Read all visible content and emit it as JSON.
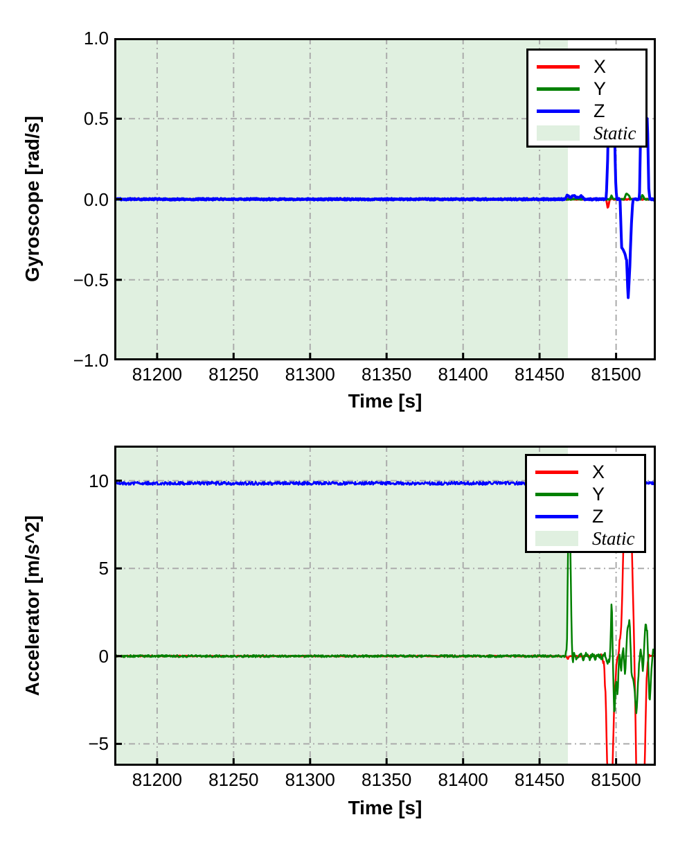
{
  "chart_data": [
    {
      "type": "line",
      "title": "",
      "xlabel": "Time [s]",
      "ylabel": "Gyroscope [rad/s]",
      "xlim": [
        81172,
        81526
      ],
      "ylim": [
        -1.0,
        1.0
      ],
      "xticks": [
        81200,
        81250,
        81300,
        81350,
        81400,
        81450,
        81500
      ],
      "xtick_labels": [
        "81200",
        "81250",
        "81300",
        "81350",
        "81400",
        "81450",
        "81500"
      ],
      "yticks": [
        1.0,
        0.5,
        0.0,
        -0.5,
        -1.0
      ],
      "ytick_labels": [
        "1.0",
        "0.5",
        "0.0",
        "−0.5",
        "−1.0"
      ],
      "grid": {
        "on": true,
        "style": "dash-dot",
        "color": "#ababab",
        "dash": "9 5 2 5"
      },
      "static_region": {
        "label": "Static",
        "x_start": 81172,
        "x_end": 81468.5,
        "color": "rgba(0,128,0,0.12)"
      },
      "legend": {
        "position": "upper right",
        "entries": [
          {
            "label": "X",
            "color": "#ff0000",
            "type": "line",
            "italic": false
          },
          {
            "label": "Y",
            "color": "#008000",
            "type": "line",
            "italic": false
          },
          {
            "label": "Z",
            "color": "#0000ff",
            "type": "line",
            "italic": false
          },
          {
            "label": "Static",
            "color": "rgba(0,128,0,0.12)",
            "type": "patch",
            "italic": true
          }
        ]
      },
      "series": [
        {
          "name": "X",
          "color": "#ff0000",
          "width": 3,
          "noise": 0.0035,
          "points": [
            [
              81172,
              0
            ],
            [
              81493.5,
              0
            ],
            [
              81494.6,
              -0.055
            ],
            [
              81496,
              0
            ],
            [
              81526,
              0
            ]
          ]
        },
        {
          "name": "Y",
          "color": "#008000",
          "width": 3,
          "noise": 0.0035,
          "points": [
            [
              81172,
              0
            ],
            [
              81496,
              0
            ],
            [
              81497,
              0.025
            ],
            [
              81498.3,
              0
            ],
            [
              81505.5,
              0
            ],
            [
              81506.5,
              0.035
            ],
            [
              81508.5,
              0.02
            ],
            [
              81509.5,
              0
            ],
            [
              81516.2,
              0
            ],
            [
              81517.3,
              0.03
            ],
            [
              81518.5,
              0
            ],
            [
              81526,
              0
            ]
          ]
        },
        {
          "name": "Z",
          "color": "#0000ff",
          "width": 4,
          "noise": 0.005,
          "points": [
            [
              81172,
              0
            ],
            [
              81466.5,
              0
            ],
            [
              81468,
              0.026
            ],
            [
              81470,
              0.008
            ],
            [
              81472,
              0.024
            ],
            [
              81474.5,
              0.008
            ],
            [
              81477,
              0.02
            ],
            [
              81479.5,
              0
            ],
            [
              81493.6,
              0
            ],
            [
              81494.5,
              0.25
            ],
            [
              81495.1,
              0.55
            ],
            [
              81498.8,
              0.55
            ],
            [
              81499.7,
              0.12
            ],
            [
              81500.4,
              0
            ],
            [
              81502.6,
              0
            ],
            [
              81503.6,
              -0.3
            ],
            [
              81505.4,
              -0.33
            ],
            [
              81506.9,
              -0.38
            ],
            [
              81507.9,
              -0.62
            ],
            [
              81508.9,
              -0.44
            ],
            [
              81510.2,
              -0.12
            ],
            [
              81511,
              0
            ],
            [
              81515.3,
              0
            ],
            [
              81516.2,
              0.5
            ],
            [
              81520.5,
              0.5
            ],
            [
              81521.3,
              0.08
            ],
            [
              81522.1,
              0
            ],
            [
              81526,
              0
            ]
          ]
        }
      ]
    },
    {
      "type": "line",
      "title": "",
      "xlabel": "Time [s]",
      "ylabel": "Accelerator [m/s^2]",
      "xlim": [
        81172,
        81526
      ],
      "ylim": [
        -6.25,
        12
      ],
      "xticks": [
        81200,
        81250,
        81300,
        81350,
        81400,
        81450,
        81500
      ],
      "xtick_labels": [
        "81200",
        "81250",
        "81300",
        "81350",
        "81400",
        "81450",
        "81500"
      ],
      "yticks": [
        10,
        5,
        0,
        -5
      ],
      "ytick_labels": [
        "10",
        "5",
        "0",
        "−5"
      ],
      "grid": {
        "on": true,
        "style": "dash-dot",
        "color": "#ababab",
        "dash": "9 5 2 5"
      },
      "static_region": {
        "label": "Static",
        "x_start": 81172,
        "x_end": 81468.5,
        "color": "rgba(0,128,0,0.12)"
      },
      "legend": {
        "position": "upper right",
        "entries": [
          {
            "label": "X",
            "color": "#ff0000",
            "type": "line",
            "italic": false
          },
          {
            "label": "Y",
            "color": "#008000",
            "type": "line",
            "italic": false
          },
          {
            "label": "Z",
            "color": "#0000ff",
            "type": "line",
            "italic": false
          },
          {
            "label": "Static",
            "color": "rgba(0,128,0,0.12)",
            "type": "patch",
            "italic": true
          }
        ]
      },
      "series": [
        {
          "name": "X",
          "color": "#ff0000",
          "width": 2.5,
          "noise": 0.03,
          "noise_segments": [
            {
              "from": 81490,
              "to": 81522,
              "amp": 0.18
            }
          ],
          "points": [
            [
              81172,
              0
            ],
            [
              81467.3,
              0
            ],
            [
              81468.5,
              -0.18
            ],
            [
              81469.6,
              0
            ],
            [
              81490,
              0
            ],
            [
              81492,
              -0.3
            ],
            [
              81493.3,
              -2.5
            ],
            [
              81494.3,
              -6.6
            ],
            [
              81497.6,
              -6.6
            ],
            [
              81499,
              -2
            ],
            [
              81500.5,
              -0.3
            ],
            [
              81502,
              0.5
            ],
            [
              81503.6,
              2
            ],
            [
              81504.9,
              6.6
            ],
            [
              81510.2,
              6.6
            ],
            [
              81511.5,
              2
            ],
            [
              81512.4,
              -2
            ],
            [
              81513.2,
              -6.6
            ],
            [
              81518.6,
              -6.6
            ],
            [
              81519.9,
              -1.5
            ],
            [
              81520.9,
              -0.2
            ],
            [
              81522,
              0
            ],
            [
              81526,
              0
            ]
          ]
        },
        {
          "name": "Y",
          "color": "#008000",
          "width": 2.5,
          "noise": 0.06,
          "noise_segments": [
            {
              "from": 81471,
              "to": 81493,
              "amp": 0.12
            },
            {
              "from": 81493,
              "to": 81526,
              "amp": 0.14
            }
          ],
          "points": [
            [
              81172,
              0
            ],
            [
              81466.9,
              0
            ],
            [
              81467.9,
              0.6
            ],
            [
              81468.7,
              6.6
            ],
            [
              81470.1,
              6.6
            ],
            [
              81470.9,
              1.5
            ],
            [
              81471.6,
              -0.45
            ],
            [
              81472.6,
              0.2
            ],
            [
              81474.5,
              -0.2
            ],
            [
              81476.5,
              0.18
            ],
            [
              81478.5,
              -0.2
            ],
            [
              81480.5,
              0.15
            ],
            [
              81482.5,
              -0.18
            ],
            [
              81484.5,
              0.15
            ],
            [
              81486.5,
              -0.15
            ],
            [
              81488.5,
              0.12
            ],
            [
              81490.5,
              -0.15
            ],
            [
              81492.5,
              0.2
            ],
            [
              81494,
              -0.4
            ],
            [
              81495.8,
              -0.2
            ],
            [
              81496.4,
              0.8
            ],
            [
              81497.1,
              3.3
            ],
            [
              81498.1,
              -0.8
            ],
            [
              81498.9,
              -3.6
            ],
            [
              81500,
              -1.2
            ],
            [
              81501,
              -2.2
            ],
            [
              81502.1,
              0.3
            ],
            [
              81503.3,
              -0.8
            ],
            [
              81504.6,
              0.6
            ],
            [
              81505.9,
              -1.1
            ],
            [
              81507.4,
              1.7
            ],
            [
              81508.9,
              2
            ],
            [
              81510.1,
              -0.9
            ],
            [
              81511.6,
              -1.5
            ],
            [
              81513.4,
              -3.3
            ],
            [
              81514.9,
              -0.6
            ],
            [
              81516.1,
              0.5
            ],
            [
              81517.6,
              -0.9
            ],
            [
              81519.1,
              1.9
            ],
            [
              81520.4,
              1.4
            ],
            [
              81521.9,
              -2.9
            ],
            [
              81523.1,
              -0.8
            ],
            [
              81524.1,
              0.3
            ],
            [
              81526,
              0.05
            ]
          ]
        },
        {
          "name": "Z",
          "color": "#0000ff",
          "width": 2.5,
          "noise": 0.09,
          "points": [
            [
              81172,
              9.85
            ],
            [
              81526,
              9.85
            ]
          ]
        }
      ]
    }
  ]
}
